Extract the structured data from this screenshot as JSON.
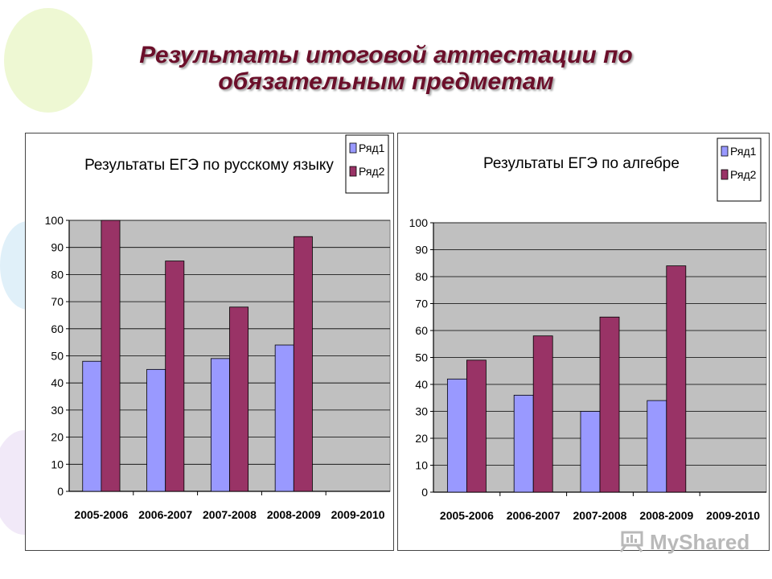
{
  "slide": {
    "title_line1": "Результаты итоговой аттестации по",
    "title_line2": "обязательным предметам"
  },
  "watermark": {
    "text": "MyShared"
  },
  "colors": {
    "title": "#6b0f2a",
    "series1": "#9999ff",
    "series2": "#993366",
    "plot_bg": "#c0c0c0"
  },
  "chart_data": [
    {
      "type": "bar",
      "title": "Результаты ЕГЭ по русскому языку",
      "categories": [
        "2005-2006",
        "2006-2007",
        "2007-2008",
        "2008-2009",
        "2009-2010"
      ],
      "series": [
        {
          "name": "Ряд1",
          "values": [
            48,
            45,
            49,
            54,
            null
          ]
        },
        {
          "name": "Ряд2",
          "values": [
            100,
            85,
            68,
            94,
            null
          ]
        }
      ],
      "ylim": [
        0,
        100
      ],
      "yticks": [
        0,
        10,
        20,
        30,
        40,
        50,
        60,
        70,
        80,
        90,
        100
      ],
      "grid": true,
      "legend": "top-right"
    },
    {
      "type": "bar",
      "title": "Результаты ЕГЭ по алгебре",
      "categories": [
        "2005-2006",
        "2006-2007",
        "2007-2008",
        "2008-2009",
        "2009-2010"
      ],
      "series": [
        {
          "name": "Ряд1",
          "values": [
            42,
            36,
            30,
            34,
            null
          ]
        },
        {
          "name": "Ряд2",
          "values": [
            49,
            58,
            65,
            84,
            null
          ]
        }
      ],
      "ylim": [
        0,
        100
      ],
      "yticks": [
        0,
        10,
        20,
        30,
        40,
        50,
        60,
        70,
        80,
        90,
        100
      ],
      "grid": true,
      "legend": "top-right"
    }
  ]
}
